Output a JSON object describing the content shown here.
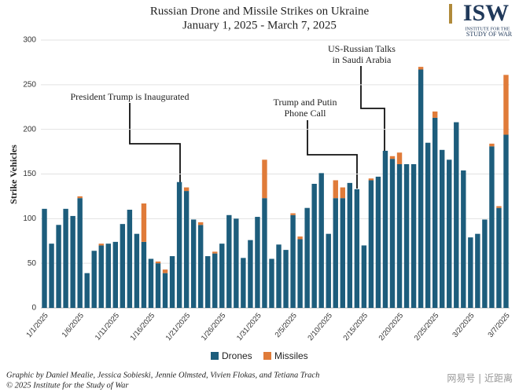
{
  "chart_data": {
    "type": "bar",
    "stacked": true,
    "title": "Russian Drone and Missile Strikes on Ukraine",
    "subtitle": "January 1, 2025 - March 7, 2025",
    "ylabel": "Strike Vehicles",
    "categories": [
      "1/1/2025",
      null,
      null,
      null,
      null,
      "1/6/2025",
      null,
      null,
      null,
      null,
      "1/11/2025",
      null,
      null,
      null,
      null,
      "1/16/2025",
      null,
      null,
      null,
      null,
      "1/21/2025",
      null,
      null,
      null,
      null,
      "1/26/2025",
      null,
      null,
      null,
      null,
      "1/31/2025",
      null,
      null,
      null,
      null,
      "2/5/2025",
      null,
      null,
      null,
      null,
      "2/10/2025",
      null,
      null,
      null,
      null,
      "2/15/2025",
      null,
      null,
      null,
      null,
      "2/20/2025",
      null,
      null,
      null,
      null,
      "2/25/2025",
      null,
      null,
      null,
      null,
      "3/2/2025",
      null,
      null,
      null,
      null,
      "3/7/2025"
    ],
    "series": [
      {
        "name": "Drones",
        "color": "#1d5d7c",
        "values": [
          111,
          72,
          93,
          111,
          103,
          123,
          39,
          64,
          70,
          72,
          74,
          94,
          110,
          83,
          74,
          55,
          50,
          39,
          58,
          141,
          131,
          99,
          93,
          58,
          61,
          72,
          104,
          100,
          56,
          76,
          102,
          123,
          55,
          71,
          65,
          104,
          77,
          112,
          139,
          151,
          83,
          123,
          123,
          140,
          133,
          70,
          143,
          147,
          176,
          167,
          161,
          161,
          161,
          267,
          185,
          213,
          177,
          166,
          208,
          154,
          79,
          83,
          99,
          181,
          112,
          194
        ]
      },
      {
        "name": "Missiles",
        "color": "#e07b39",
        "values": [
          0,
          0,
          0,
          0,
          0,
          2,
          0,
          0,
          2,
          0,
          0,
          0,
          0,
          0,
          43,
          0,
          2,
          4,
          0,
          0,
          4,
          0,
          3,
          0,
          2,
          0,
          0,
          0,
          0,
          0,
          0,
          43,
          0,
          0,
          0,
          2,
          3,
          0,
          0,
          0,
          0,
          20,
          12,
          0,
          0,
          0,
          2,
          0,
          0,
          3,
          13,
          0,
          0,
          3,
          0,
          7,
          0,
          0,
          0,
          0,
          0,
          0,
          0,
          3,
          2,
          67
        ]
      }
    ],
    "ylim": [
      0,
      300
    ],
    "yticks": [
      0,
      50,
      100,
      150,
      200,
      250,
      300
    ],
    "grid": true,
    "legend": "bottom",
    "annotations": [
      {
        "text": [
          "President Trump is Inaugurated"
        ]
      },
      {
        "text": [
          "Trump and Putin",
          "Phone Call"
        ]
      },
      {
        "text": [
          "US-Russian Talks",
          "in Saudi Arabia"
        ]
      }
    ]
  },
  "logo": {
    "mark": "ISW",
    "line1": "INSTITUTE FOR THE",
    "line2": "STUDY OF WAR"
  },
  "credits": [
    "Graphic by Daniel Mealie, Jessica Sobieski, Jennie Olmsted, Vivien Flokas, and Tetiana Trach",
    "© 2025 Institute for the Study of War"
  ],
  "watermark": "网易号 | 近距离"
}
